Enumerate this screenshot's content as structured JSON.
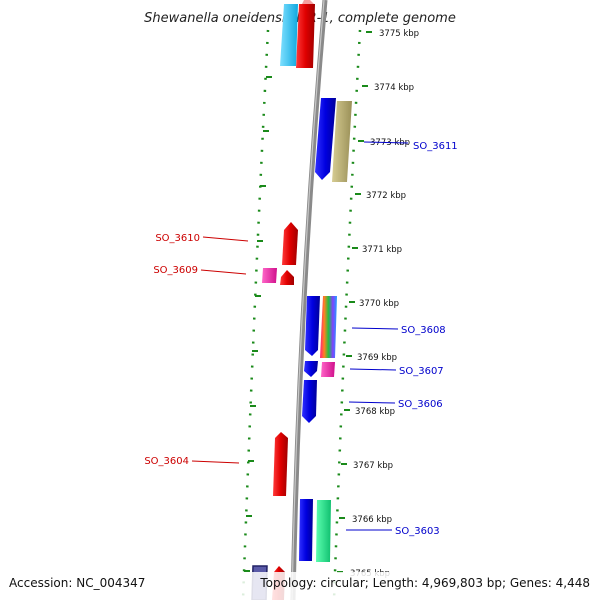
{
  "map": {
    "title": "Shewanella oneidensis MR-1, complete genome",
    "accession": "Accession: NC_004347",
    "summary": "Topology: circular; Length: 4,969,803 bp; Genes: 4,448"
  },
  "scale": {
    "ticks": [
      "3775 kbp",
      "3774 kbp",
      "3773 kbp",
      "3772 kbp",
      "3771 kbp",
      "3770 kbp",
      "3769 kbp",
      "3768 kbp",
      "3767 kbp",
      "3766 kbp",
      "3765 kbp"
    ]
  },
  "genes": {
    "left": [
      "SO_3610",
      "SO_3609",
      "SO_3604"
    ],
    "right": [
      "SO_3611",
      "SO_3608",
      "SO_3607",
      "SO_3606",
      "SO_3603"
    ]
  },
  "colors": {
    "forward_strand": "#0000ee",
    "reverse_strand": "#ee0000",
    "grid": "#1a8a1a",
    "backbone": "#8a8a8a"
  }
}
